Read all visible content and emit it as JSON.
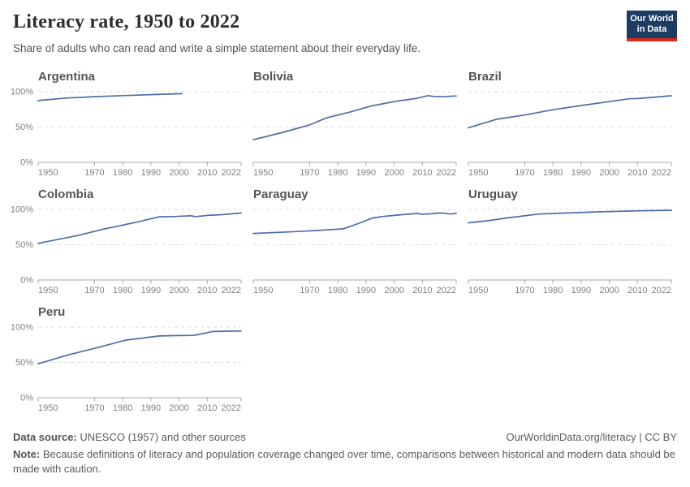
{
  "header": {
    "title": "Literacy rate, 1950 to 2022",
    "subtitle": "Share of adults who can read and write a simple statement about their everyday life.",
    "logo": {
      "line1": "Our World",
      "line2": "in Data",
      "bg_color": "#1d3d63",
      "accent_color": "#d42b21"
    }
  },
  "colors": {
    "line": "#4c6ea8",
    "gridline": "#dedede",
    "axis": "#a8a8a8",
    "tick_label": "#818181"
  },
  "chart_data": [
    {
      "type": "line",
      "title": "Argentina",
      "x": [
        1950,
        1960,
        1970,
        1980,
        1991,
        2001
      ],
      "values": [
        87.5,
        91,
        93,
        94.5,
        96,
        97.2
      ],
      "xlim": [
        1950,
        2022
      ],
      "ylim": [
        0,
        100
      ],
      "x_ticks": [
        1950,
        1970,
        1980,
        1990,
        2000,
        2010,
        2022
      ],
      "y_ticks": [
        0,
        50,
        100
      ],
      "y_tick_labels": [
        "0%",
        "50%",
        "100%"
      ],
      "show_y_labels": true,
      "grid": "dashed",
      "legend": "none"
    },
    {
      "type": "line",
      "title": "Bolivia",
      "x": [
        1950,
        1960,
        1970,
        1976,
        1985,
        1992,
        2001,
        2008,
        2012,
        2014,
        2017,
        2020,
        2022
      ],
      "values": [
        32,
        42,
        53,
        63,
        72,
        80,
        86.7,
        90.7,
        94.5,
        93.3,
        92.9,
        93.6,
        94
      ],
      "xlim": [
        1950,
        2022
      ],
      "ylim": [
        0,
        100
      ],
      "x_ticks": [
        1950,
        1970,
        1980,
        1990,
        2000,
        2010,
        2022
      ],
      "y_ticks": [
        0,
        50,
        100
      ],
      "y_tick_labels": [
        "0%",
        "50%",
        "100%"
      ],
      "show_y_labels": false,
      "grid": "dashed",
      "legend": "none"
    },
    {
      "type": "line",
      "title": "Brazil",
      "x": [
        1950,
        1960,
        1970,
        1980,
        1991,
        2000,
        2007,
        2010,
        2014,
        2018,
        2022
      ],
      "values": [
        49,
        61,
        67,
        74.5,
        81,
        86,
        90,
        90.4,
        91.5,
        93,
        94.2
      ],
      "xlim": [
        1950,
        2022
      ],
      "ylim": [
        0,
        100
      ],
      "x_ticks": [
        1950,
        1970,
        1980,
        1990,
        2000,
        2010,
        2022
      ],
      "y_ticks": [
        0,
        50,
        100
      ],
      "y_tick_labels": [
        "0%",
        "50%",
        "100%"
      ],
      "show_y_labels": false,
      "grid": "dashed",
      "legend": "none"
    },
    {
      "type": "line",
      "title": "Colombia",
      "x": [
        1950,
        1964,
        1973,
        1985,
        1993,
        1999,
        2004,
        2006,
        2010,
        2015,
        2019,
        2022
      ],
      "values": [
        52,
        63,
        72,
        82,
        89.5,
        90,
        91,
        89.8,
        91.5,
        92.5,
        93.8,
        95
      ],
      "xlim": [
        1950,
        2022
      ],
      "ylim": [
        0,
        100
      ],
      "x_ticks": [
        1950,
        1970,
        1980,
        1990,
        2000,
        2010,
        2022
      ],
      "y_ticks": [
        0,
        50,
        100
      ],
      "y_tick_labels": [
        "0%",
        "50%",
        "100%"
      ],
      "show_y_labels": true,
      "grid": "dashed",
      "legend": "none"
    },
    {
      "type": "line",
      "title": "Paraguay",
      "x": [
        1950,
        1962,
        1972,
        1982,
        1988,
        1992,
        1996,
        2000,
        2004,
        2008,
        2010,
        2013,
        2016,
        2018,
        2020,
        2022
      ],
      "values": [
        66,
        68,
        70,
        72.5,
        81,
        87.5,
        90,
        91.5,
        93,
        94.3,
        93.2,
        93.8,
        95,
        94.5,
        93.4,
        94.4
      ],
      "xlim": [
        1950,
        2022
      ],
      "ylim": [
        0,
        100
      ],
      "x_ticks": [
        1950,
        1970,
        1980,
        1990,
        2000,
        2010,
        2022
      ],
      "y_ticks": [
        0,
        50,
        100
      ],
      "y_tick_labels": [
        "0%",
        "50%",
        "100%"
      ],
      "show_y_labels": false,
      "grid": "dashed",
      "legend": "none"
    },
    {
      "type": "line",
      "title": "Uruguay",
      "x": [
        1950,
        1957,
        1963,
        1975,
        1985,
        1996,
        2006,
        2011,
        2017,
        2022
      ],
      "values": [
        81,
        84,
        87.5,
        93.5,
        95,
        96.5,
        97.6,
        98,
        98.4,
        98.7
      ],
      "xlim": [
        1950,
        2022
      ],
      "ylim": [
        0,
        100
      ],
      "x_ticks": [
        1950,
        1970,
        1980,
        1990,
        2000,
        2010,
        2022
      ],
      "y_ticks": [
        0,
        50,
        100
      ],
      "y_tick_labels": [
        "0%",
        "50%",
        "100%"
      ],
      "show_y_labels": false,
      "grid": "dashed",
      "legend": "none"
    },
    {
      "type": "line",
      "title": "Peru",
      "x": [
        1950,
        1961,
        1972,
        1981,
        1993,
        2000,
        2005,
        2007,
        2012,
        2017,
        2022
      ],
      "values": [
        48,
        61,
        72,
        81.5,
        87.5,
        88,
        88.3,
        89.5,
        93.8,
        94.2,
        94.5
      ],
      "xlim": [
        1950,
        2022
      ],
      "ylim": [
        0,
        100
      ],
      "x_ticks": [
        1950,
        1970,
        1980,
        1990,
        2000,
        2010,
        2022
      ],
      "y_ticks": [
        0,
        50,
        100
      ],
      "y_tick_labels": [
        "0%",
        "50%",
        "100%"
      ],
      "show_y_labels": true,
      "grid": "dashed",
      "legend": "none"
    }
  ],
  "footer": {
    "source_label": "Data source:",
    "source_text": " UNESCO (1957) and other sources",
    "link_text": "OurWorldinData.org/literacy | CC BY",
    "note_label": "Note:",
    "note_text": " Because definitions of literacy and population coverage changed over time, comparisons between historical and modern data should be made with caution."
  }
}
